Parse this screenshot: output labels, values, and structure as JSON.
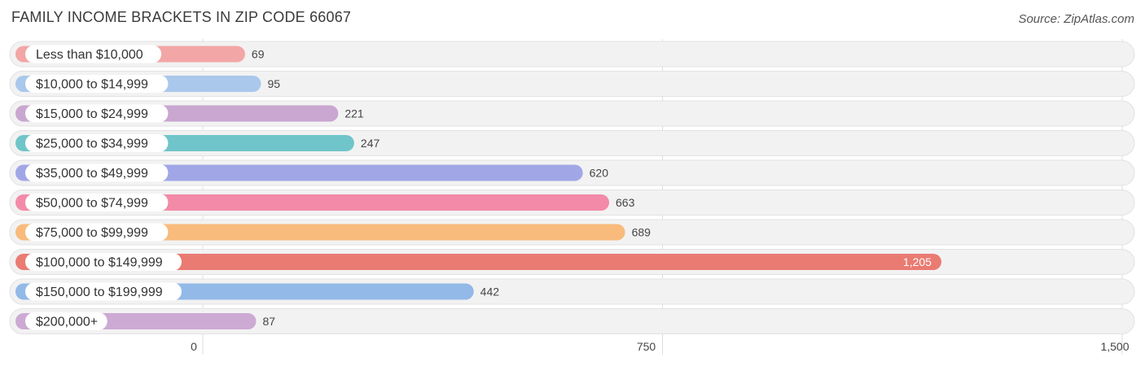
{
  "title": "FAMILY INCOME BRACKETS IN ZIP CODE 66067",
  "source": "Source: ZipAtlas.com",
  "chart_data": {
    "type": "bar",
    "orientation": "horizontal",
    "categories": [
      "Less than $10,000",
      "$10,000 to $14,999",
      "$15,000 to $24,999",
      "$25,000 to $34,999",
      "$35,000 to $49,999",
      "$50,000 to $74,999",
      "$75,000 to $99,999",
      "$100,000 to $149,999",
      "$150,000 to $199,999",
      "$200,000+"
    ],
    "values": [
      69,
      95,
      221,
      247,
      620,
      663,
      689,
      1205,
      442,
      87
    ],
    "value_labels": [
      "69",
      "95",
      "221",
      "247",
      "620",
      "663",
      "689",
      "1,205",
      "442",
      "87"
    ],
    "colors": [
      "#f2a6a6",
      "#a9c8ec",
      "#c9a7d0",
      "#6fc5c9",
      "#a1a7e6",
      "#f38aa8",
      "#f8bb7c",
      "#ea7b72",
      "#92b9e8",
      "#ccaad4"
    ],
    "xlim": [
      0,
      1500
    ],
    "xticks": [
      0,
      750,
      1500
    ],
    "xtick_labels": [
      "0",
      "750",
      "1,500"
    ],
    "grid": true,
    "title": "FAMILY INCOME BRACKETS IN ZIP CODE 66067",
    "xlabel": "",
    "ylabel": ""
  }
}
